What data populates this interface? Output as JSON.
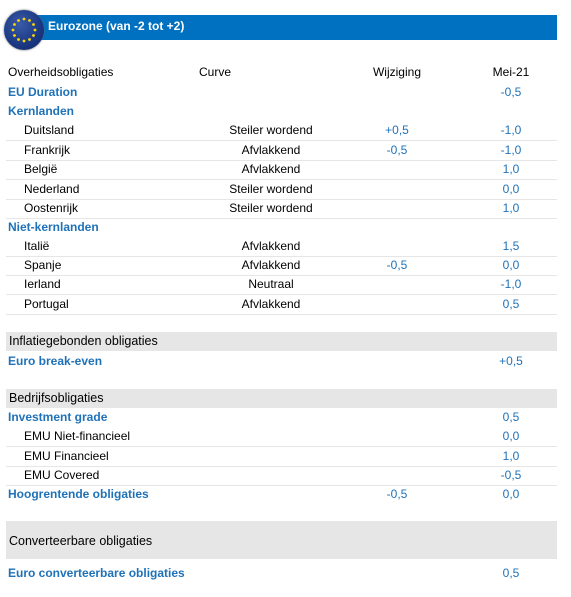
{
  "header": {
    "title": "Eurozone (van -2 tot +2)"
  },
  "columns": {
    "label": "Overheidsobligaties",
    "curve": "Curve",
    "change": "Wijziging",
    "month": "Mei-21"
  },
  "government": {
    "eu_duration": {
      "label": "EU Duration",
      "month": "-0,5"
    },
    "core_title": "Kernlanden",
    "core": [
      {
        "label": "Duitsland",
        "curve": "Steiler wordend",
        "change": "+0,5",
        "month": "-1,0"
      },
      {
        "label": "Frankrijk",
        "curve": "Afvlakkend",
        "change": "-0,5",
        "month": "-1,0"
      },
      {
        "label": "België",
        "curve": "Afvlakkend",
        "change": "",
        "month": "1,0"
      },
      {
        "label": "Nederland",
        "curve": "Steiler wordend",
        "change": "",
        "month": "0,0"
      },
      {
        "label": "Oostenrijk",
        "curve": "Steiler wordend",
        "change": "",
        "month": "1,0"
      }
    ],
    "noncore_title": "Niet-kernlanden",
    "noncore": [
      {
        "label": "Italië",
        "curve": "Afvlakkend",
        "change": "",
        "month": "1,5"
      },
      {
        "label": "Spanje",
        "curve": "Afvlakkend",
        "change": "-0,5",
        "month": "0,0"
      },
      {
        "label": "Ierland",
        "curve": "Neutraal",
        "change": "",
        "month": "-1,0"
      },
      {
        "label": "Portugal",
        "curve": "Afvlakkend",
        "change": "",
        "month": "0,5"
      }
    ]
  },
  "inflation": {
    "title": "Inflatiegebonden obligaties",
    "breakeven": {
      "label": "Euro break-even",
      "month": "+0,5"
    }
  },
  "corporate": {
    "title": "Bedrijfsobligaties",
    "ig": {
      "label": "Investment grade",
      "month": "0,5"
    },
    "ig_items": [
      {
        "label": "EMU Niet-financieel",
        "month": "0,0"
      },
      {
        "label": "EMU Financieel",
        "month": "1,0"
      },
      {
        "label": "EMU Covered",
        "month": "-0,5"
      }
    ],
    "hy": {
      "label": "Hoogrentende obligaties",
      "change": "-0,5",
      "month": "0,0"
    }
  },
  "convertible": {
    "title": "Converteerbare obligaties",
    "euro": {
      "label": "Euro converteerbare obligaties",
      "month": "0,5"
    }
  }
}
